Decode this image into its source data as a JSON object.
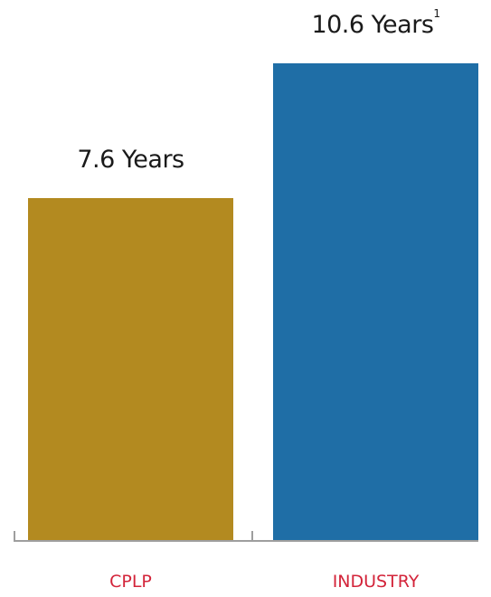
{
  "chart_data": {
    "type": "bar",
    "categories": [
      "CPLP",
      "INDUSTRY"
    ],
    "values": [
      7.6,
      10.6
    ],
    "value_labels": [
      "7.6 Years",
      "10.6 Years"
    ],
    "value_label_superscripts": [
      "",
      "1"
    ],
    "colors": [
      "#b38a20",
      "#1f6ea6"
    ],
    "category_label_color": "#d3243a",
    "axis_color": "#9e9e9e",
    "ylim": [
      0,
      10.6
    ],
    "grid": false,
    "legend": "none"
  }
}
